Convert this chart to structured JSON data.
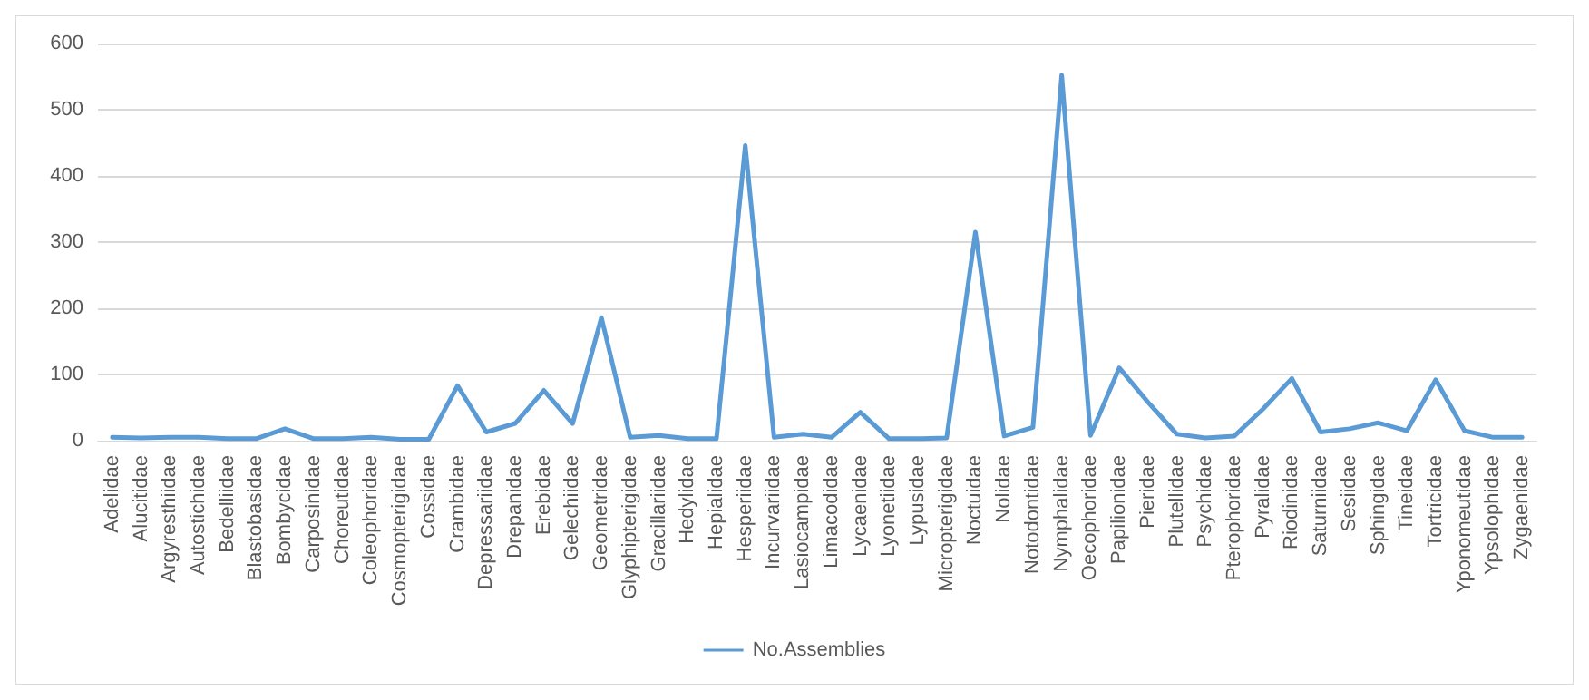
{
  "chart_data": {
    "type": "line",
    "categories": [
      "Adelidae",
      "Alucitidae",
      "Argyresthiidae",
      "Autostichidae",
      "Bedelliidae",
      "Blastobasidae",
      "Bombycidae",
      "Carposinidae",
      "Choreutidae",
      "Coleophoridae",
      "Cosmopterigidae",
      "Cossidae",
      "Crambidae",
      "Depressariidae",
      "Drepanidae",
      "Erebidae",
      "Gelechiidae",
      "Geometridae",
      "Glyphipterigidae",
      "Gracillariidae",
      "Hedylidae",
      "Hepialidae",
      "Hesperiidae",
      "Incurvariidae",
      "Lasiocampidae",
      "Limacodidae",
      "Lycaenidae",
      "Lyonetiidae",
      "Lypusidae",
      "Micropterigidae",
      "Noctuidae",
      "Nolidae",
      "Notodontidae",
      "Nymphalidae",
      "Oecophoridae",
      "Papilionidae",
      "Pieridae",
      "Plutellidae",
      "Psychidae",
      "Pterophoridae",
      "Pyralidae",
      "Riodinidae",
      "Saturniidae",
      "Sesiidae",
      "Sphingidae",
      "Tineidae",
      "Tortricidae",
      "Yponomeutidae",
      "Ypsolophidae",
      "Zygaenidae"
    ],
    "series": [
      {
        "name": "No.Assemblies",
        "color": "#5b9bd5",
        "values": [
          5,
          4,
          5,
          5,
          3,
          3,
          18,
          3,
          3,
          5,
          2,
          2,
          83,
          13,
          26,
          76,
          26,
          186,
          5,
          8,
          3,
          3,
          446,
          5,
          10,
          5,
          43,
          3,
          3,
          4,
          315,
          7,
          20,
          552,
          8,
          110,
          58,
          10,
          4,
          7,
          48,
          94,
          13,
          18,
          27,
          15,
          92,
          15,
          5,
          5
        ]
      }
    ],
    "ylim": [
      0,
      600
    ],
    "yticks": [
      0,
      100,
      200,
      300,
      400,
      500,
      600
    ],
    "grid": "y",
    "legend": "bottom",
    "marker": "none",
    "line_style": "solid"
  }
}
